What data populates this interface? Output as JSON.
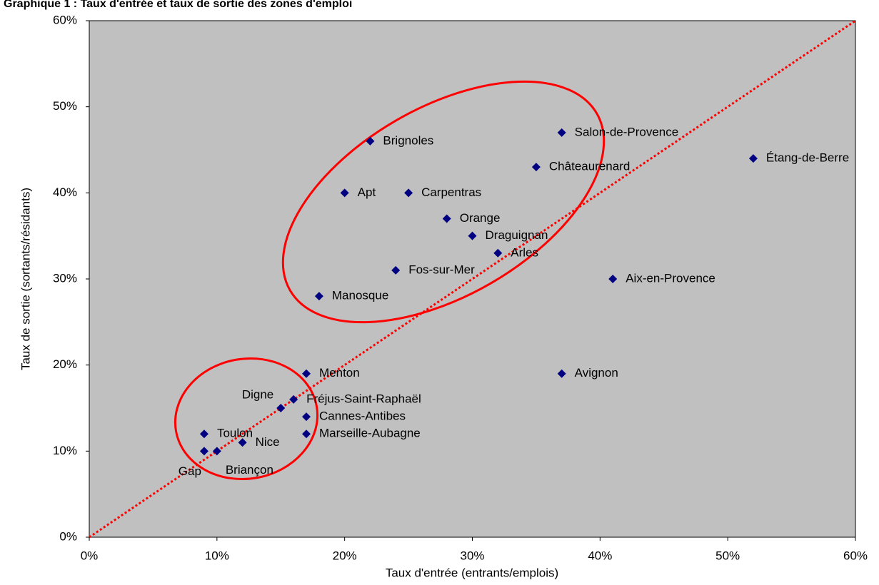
{
  "chart_data": {
    "type": "scatter",
    "title": "Graphique 1 : Taux d'entrée et taux de sortie des zones d'emploi",
    "x_label": "Taux d'entrée (entrants/emplois)",
    "y_label": "Taux de sortie (sortants/résidants)",
    "color": "#000080",
    "xlim": [
      0,
      60
    ],
    "ylim": [
      0,
      60
    ],
    "xticks": [
      {
        "value": 0,
        "label": "0%"
      },
      {
        "value": 10,
        "label": "10%"
      },
      {
        "value": 20,
        "label": "20%"
      },
      {
        "value": 30,
        "label": "30%"
      },
      {
        "value": 40,
        "label": "40%"
      },
      {
        "value": 50,
        "label": "50%"
      },
      {
        "value": 60,
        "label": "60%"
      }
    ],
    "yticks": [
      {
        "value": 0,
        "label": "0%"
      },
      {
        "value": 10,
        "label": "10%"
      },
      {
        "value": 20,
        "label": "20%"
      },
      {
        "value": 30,
        "label": "30%"
      },
      {
        "value": 40,
        "label": "40%"
      },
      {
        "value": 50,
        "label": "50%"
      },
      {
        "value": 60,
        "label": "60%"
      }
    ],
    "grid": false,
    "labels": [
      "Brignoles",
      "Apt",
      "Carpentras",
      "Orange",
      "Draguignan",
      "Arles",
      "Fos-sur-Mer",
      "Manosque",
      "Salon-de-Provence",
      "Châteaurenard",
      "Étang-de-Berre",
      "Aix-en-Provence",
      "Avignon",
      "Menton",
      "Fréjus-Saint-Raphaël",
      "Digne",
      "Cannes-Antibes",
      "Marseille-Aubagne",
      "Toulon",
      "Nice",
      "Gap",
      "Briançon"
    ],
    "x": [
      22,
      20,
      25,
      28,
      30,
      32,
      24,
      18,
      37,
      35,
      52,
      41,
      37,
      17,
      16,
      15,
      17,
      17,
      9,
      12,
      9,
      10
    ],
    "y": [
      46,
      40,
      40,
      37,
      35,
      33,
      31,
      28,
      47,
      43,
      44,
      30,
      19,
      19,
      16,
      15,
      14,
      12,
      12,
      11,
      10,
      10
    ]
  }
}
